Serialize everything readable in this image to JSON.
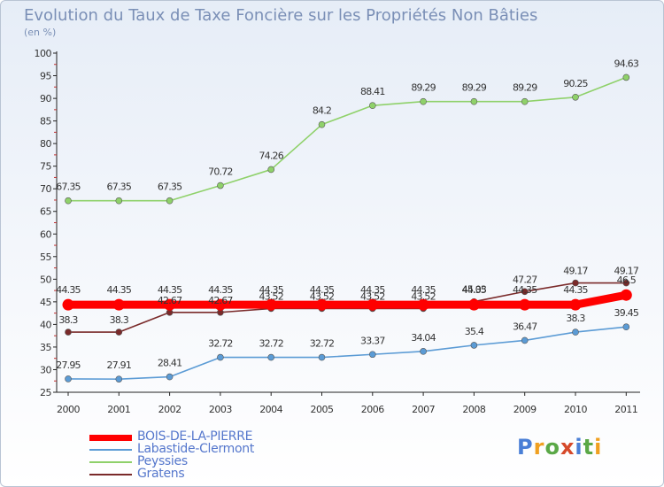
{
  "header": {
    "title": "Evolution du Taux de Taxe Foncière sur les Propriétés Non Bâties",
    "unit": "(en %)"
  },
  "brand": {
    "letters": [
      "P",
      "r",
      "o",
      "x",
      "i",
      "t",
      "i"
    ],
    "colors": [
      "#4a7fd6",
      "#f0a020",
      "#5aa846",
      "#d64a2a",
      "#4a7fd6",
      "#5aa846",
      "#f0a020"
    ]
  },
  "chart_data": {
    "type": "line",
    "title": "Evolution du Taux de Taxe Foncière sur les Propriétés Non Bâties",
    "ylabel": "(en %)",
    "xlabel": "",
    "ylim": [
      25,
      100
    ],
    "yticks": [
      25,
      30,
      35,
      40,
      45,
      50,
      55,
      60,
      65,
      70,
      75,
      80,
      85,
      90,
      95,
      100
    ],
    "categories": [
      "2000",
      "2001",
      "2002",
      "2003",
      "2004",
      "2005",
      "2006",
      "2007",
      "2008",
      "2009",
      "2010",
      "2011"
    ],
    "grid": false,
    "legend": "bottom-left",
    "series": [
      {
        "name": "BOIS-DE-LA-PIERRE",
        "color": "#ff0000",
        "values": [
          44.35,
          44.35,
          44.35,
          44.35,
          44.35,
          44.35,
          44.35,
          44.35,
          44.35,
          44.35,
          44.35,
          46.5
        ],
        "labels": [
          "44.35",
          "44.35",
          "44.35",
          "44.35",
          "44.35",
          "44.35",
          "44.35",
          "44.35",
          "44.35",
          "44.35",
          "44.35",
          "46.5"
        ]
      },
      {
        "name": "Labastide-Clermont",
        "color": "#5b9bd5",
        "values": [
          27.95,
          27.91,
          28.41,
          32.72,
          32.72,
          32.72,
          33.37,
          34.04,
          35.4,
          36.47,
          38.3,
          39.45
        ],
        "labels": [
          "27.95",
          "27.91",
          "28.41",
          "32.72",
          "32.72",
          "32.72",
          "33.37",
          "34.04",
          "35.4",
          "36.47",
          "38.3",
          "39.45"
        ]
      },
      {
        "name": "Peyssies",
        "color": "#8fd16a",
        "values": [
          67.35,
          67.35,
          67.35,
          70.72,
          74.26,
          84.2,
          88.41,
          89.29,
          89.29,
          89.29,
          90.25,
          94.63
        ],
        "labels": [
          "67.35",
          "67.35",
          "67.35",
          "70.72",
          "74.26",
          "84.2",
          "88.41",
          "89.29",
          "89.29",
          "89.29",
          "90.25",
          "94.63"
        ]
      },
      {
        "name": "Gratens",
        "color": "#7a2a2a",
        "values": [
          38.3,
          38.3,
          42.67,
          42.67,
          43.52,
          43.52,
          43.52,
          43.52,
          45.03,
          47.27,
          49.17,
          49.17
        ],
        "labels": [
          "38.3",
          "38.3",
          "42.67",
          "42.67",
          "43.52",
          "43.52",
          "43.52",
          "43.52",
          "45.03",
          "47.27",
          "49.17",
          "49.17"
        ]
      }
    ]
  }
}
